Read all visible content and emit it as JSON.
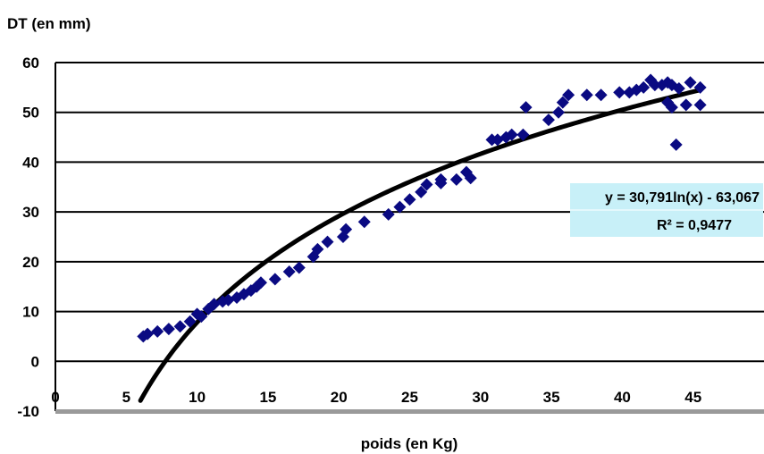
{
  "chart_data": {
    "type": "scatter",
    "title": "",
    "ylabel": "DT (en mm)",
    "xlabel": "poids (en Kg)",
    "xlim": [
      0,
      50
    ],
    "ylim": [
      -10,
      60
    ],
    "xticks": [
      0,
      5,
      10,
      15,
      20,
      25,
      30,
      35,
      40,
      45
    ],
    "yticks": [
      -10,
      0,
      10,
      20,
      30,
      40,
      50,
      60
    ],
    "grid": "horizontal",
    "colors": {
      "points": "#0a0a82",
      "trendline": "#000000",
      "equation_box": "#c8f0f8"
    },
    "series": [
      {
        "marker": "diamond",
        "points": [
          [
            6.2,
            5.0
          ],
          [
            6.5,
            5.5
          ],
          [
            7.2,
            6.0
          ],
          [
            8.0,
            6.5
          ],
          [
            8.8,
            7.0
          ],
          [
            9.5,
            8.0
          ],
          [
            10.0,
            9.5
          ],
          [
            10.3,
            9.0
          ],
          [
            10.8,
            10.5
          ],
          [
            11.2,
            11.5
          ],
          [
            11.8,
            12.0
          ],
          [
            12.2,
            12.3
          ],
          [
            12.8,
            12.8
          ],
          [
            13.3,
            13.5
          ],
          [
            13.8,
            14.2
          ],
          [
            14.2,
            15.0
          ],
          [
            14.5,
            15.8
          ],
          [
            15.5,
            16.5
          ],
          [
            16.5,
            18.0
          ],
          [
            17.2,
            18.8
          ],
          [
            18.2,
            21.0
          ],
          [
            18.5,
            22.5
          ],
          [
            19.2,
            24.0
          ],
          [
            20.3,
            25.0
          ],
          [
            20.5,
            26.5
          ],
          [
            21.8,
            28.0
          ],
          [
            23.5,
            29.5
          ],
          [
            24.3,
            31.0
          ],
          [
            25.0,
            32.5
          ],
          [
            25.8,
            34.0
          ],
          [
            26.2,
            35.5
          ],
          [
            27.2,
            35.8
          ],
          [
            27.2,
            36.5
          ],
          [
            28.3,
            36.5
          ],
          [
            29.0,
            38.0
          ],
          [
            29.3,
            36.8
          ],
          [
            30.8,
            44.5
          ],
          [
            31.2,
            44.5
          ],
          [
            31.8,
            45.0
          ],
          [
            32.2,
            45.5
          ],
          [
            33.0,
            45.5
          ],
          [
            33.2,
            51.0
          ],
          [
            34.8,
            48.5
          ],
          [
            35.5,
            50.0
          ],
          [
            35.8,
            52.0
          ],
          [
            36.2,
            53.5
          ],
          [
            37.5,
            53.5
          ],
          [
            38.5,
            53.5
          ],
          [
            39.8,
            54.0
          ],
          [
            40.5,
            54.0
          ],
          [
            41.0,
            54.5
          ],
          [
            41.5,
            55.0
          ],
          [
            42.0,
            56.5
          ],
          [
            42.3,
            55.5
          ],
          [
            42.8,
            55.5
          ],
          [
            43.2,
            56.0
          ],
          [
            43.5,
            55.5
          ],
          [
            43.2,
            52.0
          ],
          [
            43.5,
            51.0
          ],
          [
            43.8,
            43.5
          ],
          [
            44.0,
            54.8
          ],
          [
            44.5,
            51.5
          ],
          [
            44.8,
            56.0
          ],
          [
            45.5,
            55.0
          ],
          [
            45.5,
            51.5
          ]
        ]
      }
    ],
    "trendline": {
      "type": "logarithmic",
      "a": 30.791,
      "b": -63.067,
      "x_range": [
        6,
        45.5
      ],
      "equation_label": "y = 30,791ln(x) - 63,067",
      "r2_label": "R² = 0,9477"
    }
  }
}
